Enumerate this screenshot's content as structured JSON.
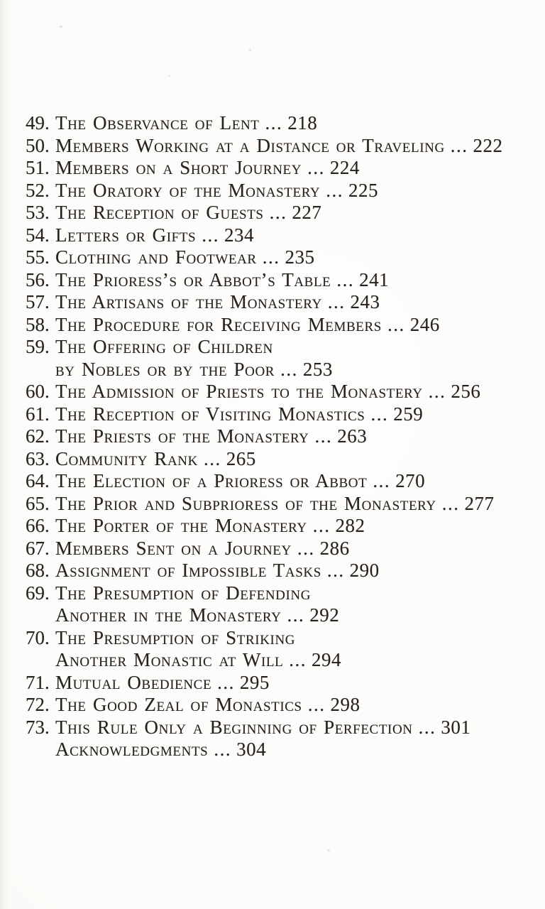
{
  "page": {
    "kind": "book-table-of-contents-scan",
    "paper_color": "#fcfbf9",
    "ink_color": "#26221e"
  },
  "toc": {
    "separator": "...",
    "entries": [
      {
        "number": "49.",
        "lines": [
          "The Observance of Lent"
        ],
        "page": "218"
      },
      {
        "number": "50.",
        "lines": [
          "Members Working at a Distance or Traveling"
        ],
        "page": "222"
      },
      {
        "number": "51.",
        "lines": [
          "Members on a Short Journey"
        ],
        "page": "224"
      },
      {
        "number": "52.",
        "lines": [
          "The Oratory of the Monastery"
        ],
        "page": "225"
      },
      {
        "number": "53.",
        "lines": [
          "The Reception of Guests"
        ],
        "page": "227"
      },
      {
        "number": "54.",
        "lines": [
          "Letters or Gifts"
        ],
        "page": "234"
      },
      {
        "number": "55.",
        "lines": [
          "Clothing and Footwear"
        ],
        "page": "235"
      },
      {
        "number": "56.",
        "lines": [
          "The Prioress’s or Abbot’s Table"
        ],
        "page": "241"
      },
      {
        "number": "57.",
        "lines": [
          "The Artisans of the Monastery"
        ],
        "page": "243"
      },
      {
        "number": "58.",
        "lines": [
          "The Procedure for Receiving Members"
        ],
        "page": "246"
      },
      {
        "number": "59.",
        "lines": [
          "The Offering of Children",
          "by Nobles or by the Poor"
        ],
        "page": "253"
      },
      {
        "number": "60.",
        "lines": [
          "The Admission of Priests to the Monastery"
        ],
        "page": "256"
      },
      {
        "number": "61.",
        "lines": [
          "The Reception of Visiting Monastics"
        ],
        "page": "259"
      },
      {
        "number": "62.",
        "lines": [
          "The Priests of the Monastery"
        ],
        "page": "263"
      },
      {
        "number": "63.",
        "lines": [
          "Community Rank"
        ],
        "page": "265"
      },
      {
        "number": "64.",
        "lines": [
          "The Election of a Prioress or Abbot"
        ],
        "page": "270"
      },
      {
        "number": "65.",
        "lines": [
          "The Prior and Subprioress of the Monastery"
        ],
        "page": "277"
      },
      {
        "number": "66.",
        "lines": [
          "The Porter of the Monastery"
        ],
        "page": "282"
      },
      {
        "number": "67.",
        "lines": [
          "Members Sent on a Journey"
        ],
        "page": "286"
      },
      {
        "number": "68.",
        "lines": [
          "Assignment of Impossible Tasks"
        ],
        "page": "290"
      },
      {
        "number": "69.",
        "lines": [
          "The Presumption of Defending",
          "Another in the Monastery"
        ],
        "page": "292"
      },
      {
        "number": "70.",
        "lines": [
          "The Presumption of Striking",
          "Another Monastic at Will"
        ],
        "page": "294"
      },
      {
        "number": "71.",
        "lines": [
          "Mutual Obedience"
        ],
        "page": "295"
      },
      {
        "number": "72.",
        "lines": [
          "The Good Zeal of Monastics"
        ],
        "page": "298"
      },
      {
        "number": "73.",
        "lines": [
          "This Rule Only a Beginning of Perfection"
        ],
        "page": "301"
      },
      {
        "number": "",
        "lines": [
          "Acknowledgments"
        ],
        "page": "304"
      }
    ]
  }
}
